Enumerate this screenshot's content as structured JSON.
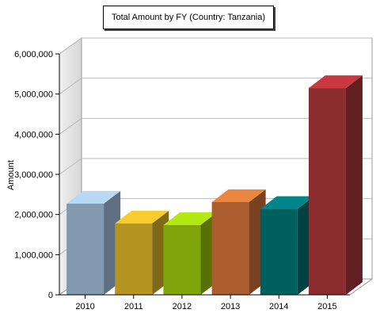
{
  "chart_data": {
    "type": "bar",
    "title": "Total Amount by FY (Country: Tanzania)",
    "xlabel": "",
    "ylabel": "Amount",
    "categories": [
      "2010",
      "2011",
      "2012",
      "2013",
      "2014",
      "2015"
    ],
    "values": [
      2270000,
      1780000,
      1740000,
      2310000,
      2140000,
      5150000
    ],
    "ylim": [
      0,
      6000000
    ],
    "yticks": [
      "0",
      "1,000,000",
      "2,000,000",
      "3,000,000",
      "4,000,000",
      "5,000,000",
      "6,000,000"
    ],
    "grid": true,
    "legend": "none",
    "colors": [
      {
        "front": "#8399b0",
        "top": "#b8d8f4",
        "side": "#5e6f82"
      },
      {
        "front": "#b59422",
        "top": "#f8cc2e",
        "side": "#806916"
      },
      {
        "front": "#80a40b",
        "top": "#b4e812",
        "side": "#577107"
      },
      {
        "front": "#ab5d30",
        "top": "#ea8640",
        "side": "#7a4120"
      },
      {
        "front": "#006060",
        "top": "#00868a",
        "side": "#004242"
      },
      {
        "front": "#8b2c2f",
        "top": "#c8383e",
        "side": "#621f22"
      }
    ]
  }
}
